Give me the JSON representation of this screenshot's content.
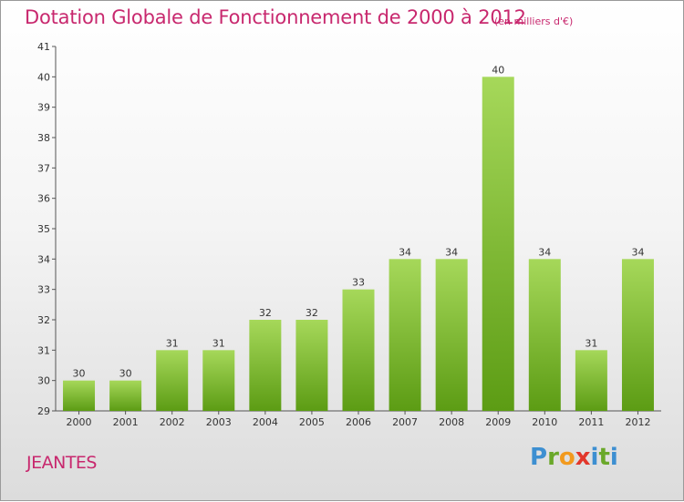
{
  "header": {
    "title": "Dotation Globale de Fonctionnement de 2000 à 2012",
    "subtitle": "(en milliers d'€)"
  },
  "footer": {
    "commune": "JEANTES",
    "brand": [
      "P",
      "r",
      "o",
      "x",
      "i",
      "t",
      "i"
    ]
  },
  "colors": {
    "title": "#c8286e",
    "bar_light": "#a6d85a",
    "bar_dark": "#5c9c14"
  },
  "chart_data": {
    "type": "bar",
    "title": "Dotation Globale de Fonctionnement de 2000 à 2012",
    "subtitle": "(en milliers d'€)",
    "categories": [
      "2000",
      "2001",
      "2002",
      "2003",
      "2004",
      "2005",
      "2006",
      "2007",
      "2008",
      "2009",
      "2010",
      "2011",
      "2012"
    ],
    "values": [
      30,
      30,
      31,
      31,
      32,
      32,
      33,
      34,
      34,
      40,
      34,
      31,
      34
    ],
    "ylim": [
      29,
      41
    ],
    "yticks": [
      29,
      30,
      31,
      32,
      33,
      34,
      35,
      36,
      37,
      38,
      39,
      40,
      41
    ],
    "xlabel": "",
    "ylabel": "",
    "grid": false,
    "data_labels": true
  }
}
